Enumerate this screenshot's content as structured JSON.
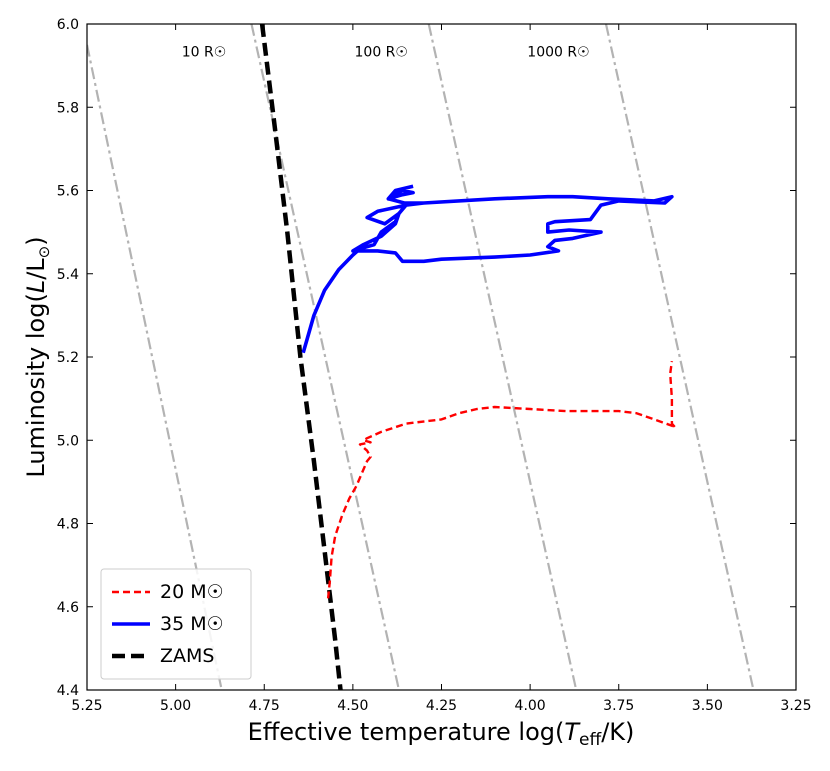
{
  "chart_data": {
    "type": "line",
    "title": "",
    "xlabel": "Effective temperature log(T_eff/K)",
    "xlabel_parts": {
      "pre": "Effective temperature log(",
      "T": "T",
      "sub": "eff",
      "post": "/K)"
    },
    "ylabel": "Luminosity  log(L/L☉)",
    "ylabel_parts": {
      "pre": "Luminosity  log(",
      "L": "L",
      "mid": "/L",
      "sun": "⊙",
      "post": ")"
    },
    "xlim": [
      5.25,
      3.25
    ],
    "ylim": [
      4.4,
      6.0
    ],
    "x_ticks": [
      5.25,
      5.0,
      4.75,
      4.5,
      4.25,
      4.0,
      3.75,
      3.5,
      3.25
    ],
    "x_tick_labels": [
      "5.25",
      "5.00",
      "4.75",
      "4.50",
      "4.25",
      "4.00",
      "3.75",
      "3.50",
      "3.25"
    ],
    "y_ticks": [
      4.4,
      4.6,
      4.8,
      5.0,
      5.2,
      5.4,
      5.6,
      5.8,
      6.0
    ],
    "y_tick_labels": [
      "4.4",
      "4.6",
      "4.8",
      "5.0",
      "5.2",
      "5.4",
      "5.6",
      "5.8",
      "6.0"
    ],
    "grid": false,
    "legend_position": "bottom-left",
    "radius_lines": [
      {
        "label": "",
        "points": [
          [
            5.25,
            5.95
          ],
          [
            4.87,
            4.4
          ]
        ]
      },
      {
        "label": "10 R☉",
        "points": [
          [
            4.786,
            6.0
          ],
          [
            4.37,
            4.4
          ]
        ]
      },
      {
        "label": "100 R☉",
        "points": [
          [
            4.286,
            6.0
          ],
          [
            3.87,
            4.4
          ]
        ]
      },
      {
        "label": "1000 R☉",
        "points": [
          [
            3.786,
            6.0
          ],
          [
            3.37,
            4.4
          ]
        ]
      }
    ],
    "radius_labels": [
      {
        "text": "10 R☉",
        "x": 4.92,
        "y": 5.97
      },
      {
        "text": "100 R☉",
        "x": 4.42,
        "y": 5.97
      },
      {
        "text": "1000 R☉",
        "x": 3.92,
        "y": 5.97
      }
    ],
    "series": [
      {
        "name": "ZAMS",
        "legend_label": "ZAMS",
        "color": "#000000",
        "style": "dashed",
        "points": [
          [
            4.756,
            6.0
          ],
          [
            4.72,
            5.75
          ],
          [
            4.685,
            5.5
          ],
          [
            4.648,
            5.2
          ],
          [
            4.61,
            4.95
          ],
          [
            4.575,
            4.7
          ],
          [
            4.55,
            4.52
          ],
          [
            4.535,
            4.4
          ]
        ]
      },
      {
        "name": "35 M☉",
        "legend_label": "35 M☉",
        "color": "#0000ff",
        "style": "solid",
        "points": [
          [
            4.64,
            5.21
          ],
          [
            4.63,
            5.24
          ],
          [
            4.61,
            5.3
          ],
          [
            4.58,
            5.36
          ],
          [
            4.54,
            5.41
          ],
          [
            4.5,
            5.445
          ],
          [
            4.48,
            5.46
          ],
          [
            4.44,
            5.47
          ],
          [
            4.42,
            5.5
          ],
          [
            4.38,
            5.525
          ],
          [
            4.37,
            5.545
          ],
          [
            4.41,
            5.52
          ],
          [
            4.46,
            5.535
          ],
          [
            4.43,
            5.55
          ],
          [
            4.35,
            5.565
          ],
          [
            4.3,
            5.57
          ],
          [
            4.1,
            5.58
          ],
          [
            3.95,
            5.585
          ],
          [
            3.88,
            5.585
          ],
          [
            3.78,
            5.58
          ],
          [
            3.65,
            5.575
          ],
          [
            3.6,
            5.585
          ],
          [
            3.62,
            5.57
          ],
          [
            3.75,
            5.575
          ],
          [
            3.8,
            5.565
          ],
          [
            3.83,
            5.53
          ],
          [
            3.93,
            5.525
          ],
          [
            3.95,
            5.52
          ],
          [
            3.95,
            5.5
          ],
          [
            3.89,
            5.505
          ],
          [
            3.8,
            5.5
          ],
          [
            3.88,
            5.485
          ],
          [
            3.93,
            5.48
          ],
          [
            3.95,
            5.465
          ],
          [
            3.92,
            5.455
          ],
          [
            4.0,
            5.445
          ],
          [
            4.1,
            5.44
          ],
          [
            4.25,
            5.435
          ],
          [
            4.3,
            5.43
          ],
          [
            4.36,
            5.43
          ],
          [
            4.38,
            5.45
          ],
          [
            4.43,
            5.455
          ],
          [
            4.5,
            5.455
          ],
          [
            4.47,
            5.47
          ],
          [
            4.42,
            5.49
          ],
          [
            4.38,
            5.52
          ],
          [
            4.37,
            5.545
          ],
          [
            4.35,
            5.565
          ],
          [
            4.3,
            5.57
          ],
          [
            4.355,
            5.57
          ],
          [
            4.4,
            5.58
          ],
          [
            4.36,
            5.59
          ],
          [
            4.33,
            5.595
          ],
          [
            4.36,
            5.6
          ],
          [
            4.4,
            5.58
          ],
          [
            4.38,
            5.6
          ],
          [
            4.33,
            5.61
          ]
        ]
      },
      {
        "name": "20 M☉",
        "legend_label": "20 M☉",
        "color": "#ff0000",
        "style": "dashed",
        "points": [
          [
            4.57,
            4.62
          ],
          [
            4.565,
            4.66
          ],
          [
            4.56,
            4.72
          ],
          [
            4.55,
            4.77
          ],
          [
            4.53,
            4.82
          ],
          [
            4.51,
            4.86
          ],
          [
            4.49,
            4.89
          ],
          [
            4.47,
            4.93
          ],
          [
            4.46,
            4.95
          ],
          [
            4.45,
            4.96
          ],
          [
            4.46,
            4.975
          ],
          [
            4.48,
            4.99
          ],
          [
            4.45,
            4.995
          ],
          [
            4.47,
            5.0
          ],
          [
            4.46,
            5.005
          ],
          [
            4.42,
            5.02
          ],
          [
            4.35,
            5.04
          ],
          [
            4.25,
            5.05
          ],
          [
            4.2,
            5.065
          ],
          [
            4.15,
            5.075
          ],
          [
            4.1,
            5.08
          ],
          [
            4.0,
            5.075
          ],
          [
            3.9,
            5.07
          ],
          [
            3.75,
            5.07
          ],
          [
            3.7,
            5.065
          ],
          [
            3.65,
            5.05
          ],
          [
            3.6,
            5.035
          ],
          [
            3.59,
            5.03
          ],
          [
            3.6,
            5.04
          ],
          [
            3.6,
            5.1
          ],
          [
            3.605,
            5.16
          ],
          [
            3.6,
            5.19
          ]
        ]
      }
    ]
  }
}
